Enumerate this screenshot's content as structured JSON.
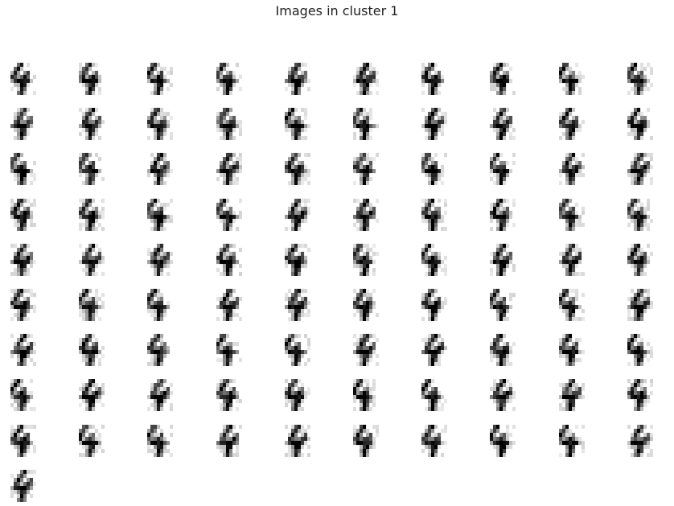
{
  "figure": {
    "title": "Images in cluster 1",
    "columns": 10,
    "image_count": 91,
    "image_content": "handwritten digit 4 (8x8 grayscale, gray_r colormap)",
    "colors": {
      "ink": "#000000",
      "background": "#ffffff"
    }
  }
}
